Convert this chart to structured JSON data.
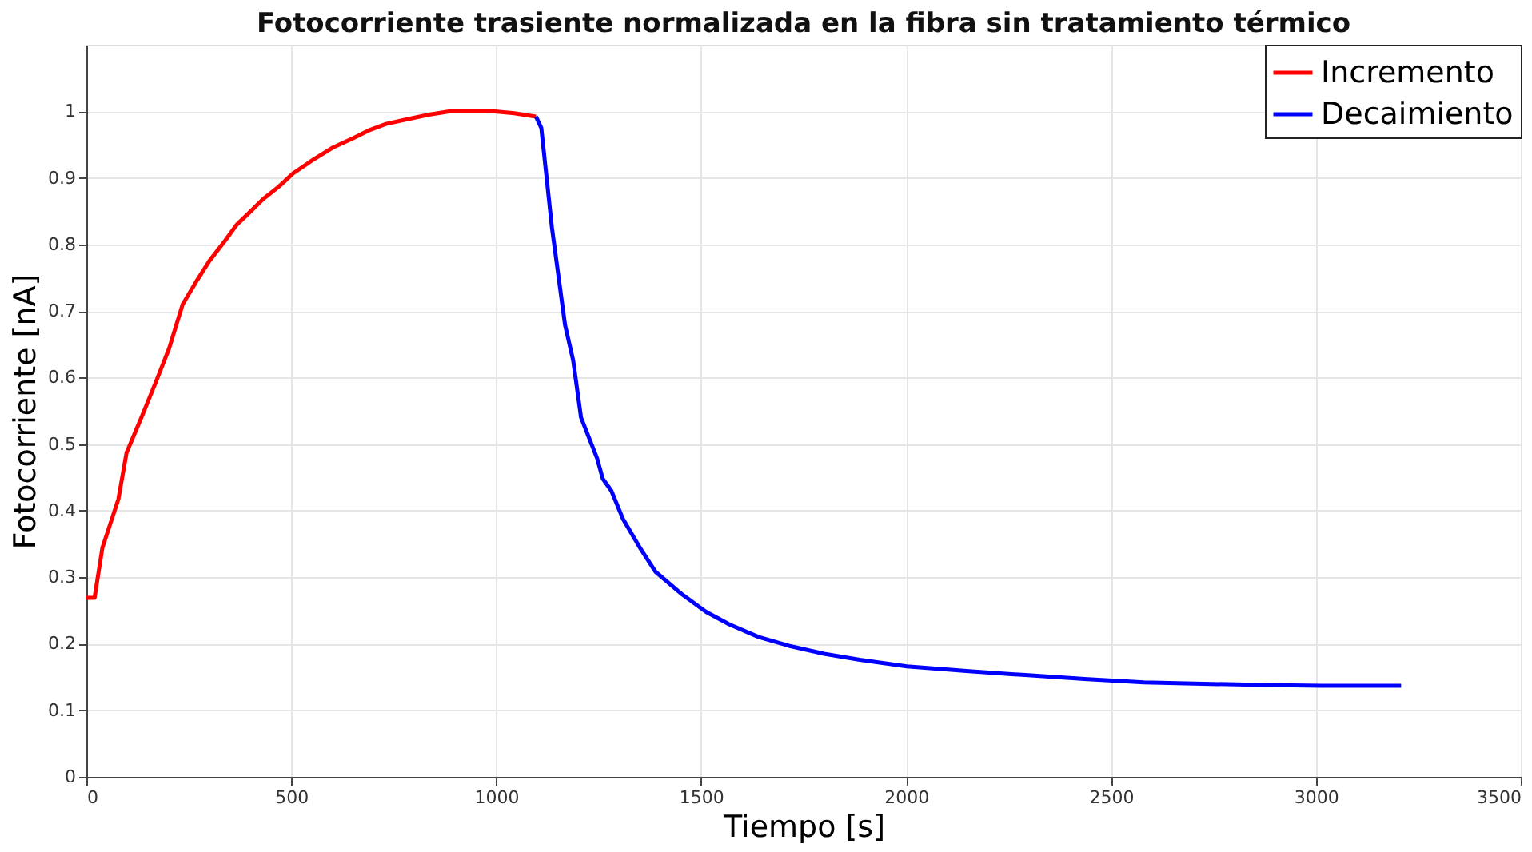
{
  "chart_data": {
    "type": "line",
    "title": "Fotocorriente trasiente normalizada en la fibra sin tratamiento térmico",
    "xlabel": "Tiempo [s]",
    "ylabel": "Fotocorriente [nA]",
    "xlim": [
      0,
      3500
    ],
    "xticks": [
      0,
      500,
      1000,
      1500,
      2000,
      2500,
      3000,
      3500
    ],
    "ylim": [
      0,
      1.1
    ],
    "yticks": [
      0,
      0.1,
      0.2,
      0.3,
      0.4,
      0.5,
      0.6,
      0.7,
      0.8,
      0.9,
      1
    ],
    "grid": true,
    "legend": "top right",
    "line_style": "solid",
    "marker": "none",
    "series": [
      {
        "name": "Incremento",
        "color": "#ff0000",
        "x": [
          0,
          20,
          39,
          78,
          98,
          137,
          170,
          202,
          235,
          268,
          300,
          339,
          366,
          398,
          431,
          470,
          503,
          548,
          600,
          653,
          692,
          731,
          783,
          836,
          888,
          992,
          1044,
          1097
        ],
        "values": [
          0.269,
          0.269,
          0.344,
          0.417,
          0.487,
          0.544,
          0.594,
          0.644,
          0.71,
          0.744,
          0.775,
          0.806,
          0.829,
          0.848,
          0.868,
          0.887,
          0.906,
          0.925,
          0.945,
          0.96,
          0.972,
          0.981,
          0.988,
          0.995,
          1.0,
          1.0,
          0.997,
          0.992
        ]
      },
      {
        "name": "Decaimiento",
        "color": "#0000ff",
        "x": [
          1097,
          1110,
          1136,
          1168,
          1188,
          1207,
          1246,
          1260,
          1281,
          1309,
          1353,
          1389,
          1454,
          1512,
          1569,
          1641,
          1714,
          1800,
          1887,
          2002,
          2147,
          2291,
          2435,
          2580,
          2724,
          2869,
          3013,
          3208
        ],
        "values": [
          0.992,
          0.975,
          0.825,
          0.679,
          0.625,
          0.54,
          0.479,
          0.448,
          0.43,
          0.388,
          0.342,
          0.308,
          0.274,
          0.248,
          0.229,
          0.21,
          0.197,
          0.185,
          0.176,
          0.166,
          0.159,
          0.153,
          0.147,
          0.142,
          0.14,
          0.138,
          0.137,
          0.137
        ]
      }
    ]
  }
}
